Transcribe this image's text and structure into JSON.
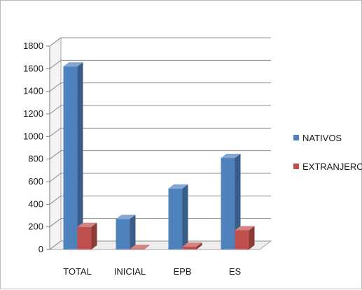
{
  "chart_data": {
    "type": "bar",
    "title": "",
    "xlabel": "",
    "ylabel": "",
    "categories": [
      "TOTAL",
      "INICIAL",
      "EPB",
      "ES"
    ],
    "series": [
      {
        "name": "NATIVOS",
        "color": "#4f81bd",
        "values": [
          1620,
          270,
          540,
          810
        ]
      },
      {
        "name": "EXTRANJEROS",
        "color": "#c0504d",
        "values": [
          200,
          5,
          25,
          170
        ]
      }
    ],
    "ylim": [
      0,
      1800
    ],
    "yticks": [
      0,
      200,
      400,
      600,
      800,
      1000,
      1200,
      1400,
      1600,
      1800
    ],
    "grid": true,
    "legend": "right",
    "style": "3d-clustered-column"
  }
}
